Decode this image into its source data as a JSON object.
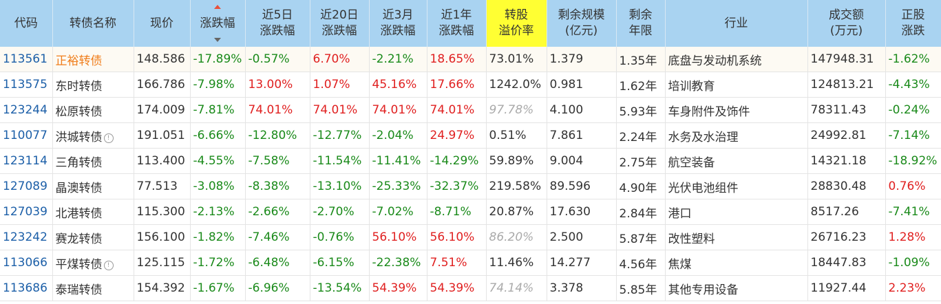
{
  "headers": {
    "code": "代码",
    "name": "转债名称",
    "price": "现价",
    "change": "涨跌幅",
    "d5_l1": "近5日",
    "d5_l2": "涨跌幅",
    "d20_l1": "近20日",
    "d20_l2": "涨跌幅",
    "m3_l1": "近3月",
    "m3_l2": "涨跌幅",
    "y1_l1": "近1年",
    "y1_l2": "涨跌幅",
    "premium_l1": "转股",
    "premium_l2": "溢价率",
    "scale_l1": "剩余规模",
    "scale_l2": "(亿元)",
    "years_l1": "剩余",
    "years_l2": "年限",
    "industry": "行业",
    "volume_l1": "成交额",
    "volume_l2": "(万元)",
    "stock_l1": "正股",
    "stock_l2": "涨跌"
  },
  "rows": [
    {
      "code": "113561",
      "name": "正裕转债",
      "price": "148.586",
      "change": "-17.89%",
      "d5": "-0.57%",
      "d20": "6.70%",
      "m3": "-2.21%",
      "y1": "18.65%",
      "premium": "73.01%",
      "scale": "1.379",
      "years": "1.35年",
      "industry": "底盘与发动机系统",
      "volume": "147948.31",
      "stock": "-1.62%"
    },
    {
      "code": "113575",
      "name": "东时转债",
      "price": "166.786",
      "change": "-7.98%",
      "d5": "13.00%",
      "d20": "1.07%",
      "m3": "45.16%",
      "y1": "17.66%",
      "premium": "1242.0%",
      "scale": "0.981",
      "years": "1.62年",
      "industry": "培训教育",
      "volume": "124813.21",
      "stock": "-4.43%"
    },
    {
      "code": "123244",
      "name": "松原转债",
      "price": "174.009",
      "change": "-7.81%",
      "d5": "74.01%",
      "d20": "74.01%",
      "m3": "74.01%",
      "y1": "74.01%",
      "premium": "97.78%",
      "scale": "4.100",
      "years": "5.93年",
      "industry": "车身附件及饰件",
      "volume": "78311.43",
      "stock": "-0.24%"
    },
    {
      "code": "110077",
      "name": "洪城转债",
      "price": "191.051",
      "change": "-6.66%",
      "d5": "-12.80%",
      "d20": "-12.77%",
      "m3": "-2.04%",
      "y1": "24.97%",
      "premium": "0.51%",
      "scale": "7.861",
      "years": "2.24年",
      "industry": "水务及水治理",
      "volume": "24992.81",
      "stock": "-7.14%"
    },
    {
      "code": "123114",
      "name": "三角转债",
      "price": "113.400",
      "change": "-4.55%",
      "d5": "-7.58%",
      "d20": "-11.54%",
      "m3": "-11.41%",
      "y1": "-14.29%",
      "premium": "59.89%",
      "scale": "9.004",
      "years": "2.75年",
      "industry": "航空装备",
      "volume": "14321.18",
      "stock": "-18.92%"
    },
    {
      "code": "127089",
      "name": "晶澳转债",
      "price": "77.513",
      "change": "-3.08%",
      "d5": "-8.38%",
      "d20": "-13.10%",
      "m3": "-25.33%",
      "y1": "-32.37%",
      "premium": "219.58%",
      "scale": "89.596",
      "years": "4.90年",
      "industry": "光伏电池组件",
      "volume": "28830.48",
      "stock": "0.76%"
    },
    {
      "code": "127039",
      "name": "北港转债",
      "price": "115.300",
      "change": "-2.13%",
      "d5": "-2.66%",
      "d20": "-2.70%",
      "m3": "-7.02%",
      "y1": "-8.71%",
      "premium": "20.87%",
      "scale": "17.630",
      "years": "2.84年",
      "industry": "港口",
      "volume": "8517.26",
      "stock": "-7.41%"
    },
    {
      "code": "123242",
      "name": "赛龙转债",
      "price": "156.100",
      "change": "-1.82%",
      "d5": "-7.46%",
      "d20": "-0.76%",
      "m3": "56.10%",
      "y1": "56.10%",
      "premium": "86.20%",
      "scale": "2.500",
      "years": "5.87年",
      "industry": "改性塑料",
      "volume": "26716.23",
      "stock": "1.28%"
    },
    {
      "code": "113066",
      "name": "平煤转债",
      "price": "125.115",
      "change": "-1.72%",
      "d5": "-6.48%",
      "d20": "-6.15%",
      "m3": "-22.38%",
      "y1": "7.51%",
      "premium": "11.46%",
      "scale": "14.277",
      "years": "4.56年",
      "industry": "焦煤",
      "volume": "18447.83",
      "stock": "-1.09%"
    },
    {
      "code": "113686",
      "name": "泰瑞转债",
      "price": "154.392",
      "change": "-1.67%",
      "d5": "-6.96%",
      "d20": "-13.54%",
      "m3": "54.39%",
      "y1": "54.39%",
      "premium": "74.14%",
      "scale": "3.378",
      "years": "5.85年",
      "industry": "其他专用设备",
      "volume": "11927.44",
      "stock": "2.23%"
    }
  ],
  "info_icon_glyph": "!",
  "colors": {
    "up": "#e02020",
    "down": "#1a8a1a",
    "header_bg": "#a9d3f1",
    "highlight_header": "#ffff33",
    "code_link": "#1c5fa8",
    "name_highlight": "#f07d1a"
  }
}
